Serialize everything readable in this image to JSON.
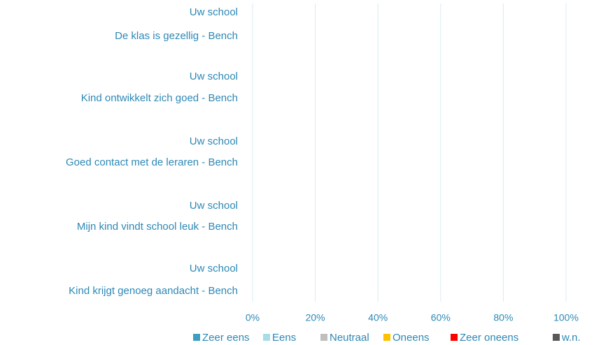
{
  "chart_data": {
    "type": "stacked-barh",
    "categories": [
      "Uw school",
      "De klas is gezellig - Bench",
      "Uw school",
      "Kind ontwikkelt zich goed - Bench",
      "Uw school",
      "Goed contact met de leraren - Bench",
      "Uw school",
      "Mijn kind vindt school leuk - Bench",
      "Uw school",
      "Kind krijgt genoeg aandacht - Bench"
    ],
    "series": [
      {
        "name": "Zeer eens",
        "color": "#3a9fc1",
        "values": [
          null,
          null,
          null,
          null,
          null,
          null,
          null,
          null,
          null,
          null
        ]
      },
      {
        "name": "Eens",
        "color": "#a8dce9",
        "values": [
          null,
          null,
          null,
          null,
          null,
          null,
          null,
          null,
          null,
          null
        ]
      },
      {
        "name": "Neutraal",
        "color": "#bfbfbf",
        "values": [
          null,
          null,
          null,
          null,
          null,
          null,
          null,
          null,
          null,
          null
        ]
      },
      {
        "name": "Oneens",
        "color": "#ffc000",
        "values": [
          null,
          null,
          null,
          null,
          null,
          null,
          null,
          null,
          null,
          null
        ]
      },
      {
        "name": "Zeer oneens",
        "color": "#ff0000",
        "values": [
          null,
          null,
          null,
          null,
          null,
          null,
          null,
          null,
          null,
          null
        ]
      },
      {
        "name": "w.n.",
        "color": "#595959",
        "values": [
          null,
          null,
          null,
          null,
          null,
          null,
          null,
          null,
          null,
          null
        ]
      }
    ],
    "xlim": [
      0,
      100
    ],
    "xticks": [
      {
        "value": 0,
        "label": "0%"
      },
      {
        "value": 20,
        "label": "20%"
      },
      {
        "value": 40,
        "label": "40%"
      },
      {
        "value": 60,
        "label": "60%"
      },
      {
        "value": 80,
        "label": "80%"
      },
      {
        "value": 100,
        "label": "100%"
      }
    ],
    "grid": true,
    "legend": "bottom"
  }
}
